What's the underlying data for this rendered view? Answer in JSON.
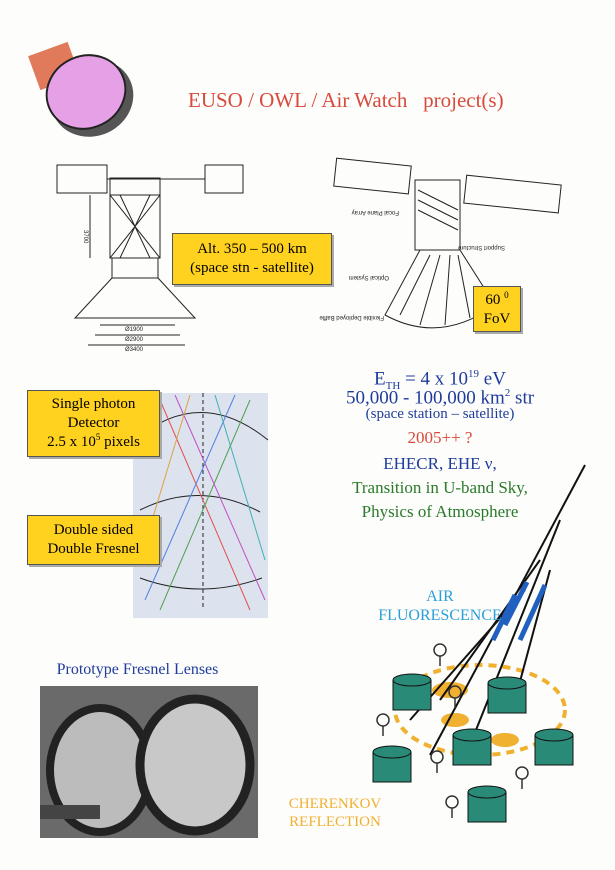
{
  "header": {
    "title": "EUSO / OWL / Air Watch   project(s)"
  },
  "altitude_box": {
    "lines": [
      "Alt. 350 – 500 km",
      "(space stn - satellite)"
    ]
  },
  "fov_box": {
    "value": "60",
    "sup": "0",
    "label": "FoV"
  },
  "specs": {
    "threshold": {
      "symbol": "E",
      "sub": "TH",
      "equals": "= 4 x 10",
      "exp": "19",
      "unit": "eV"
    },
    "aperture": {
      "text": "50,000 - 100,000 km",
      "exp": "2",
      "unit": "str"
    },
    "note": "(space station – satellite)",
    "date": "2005++ ?",
    "science": [
      "EHECR, EHE ν,",
      "Transition in U-band Sky,",
      "Physics of Atmosphere"
    ]
  },
  "detector_box": {
    "lines": [
      "Single photon",
      "Detector"
    ],
    "pixels": {
      "text": "2.5 x 10",
      "exp": "5",
      "unit": "pixels"
    }
  },
  "fresnel_box": {
    "lines": [
      "Double sided",
      "Double Fresnel"
    ]
  },
  "labels": {
    "air": [
      "AIR",
      "FLUORESCENCE"
    ],
    "photo": "Prototype Fresnel Lenses",
    "cherenkov": [
      "CHERENKOV",
      "REFLECTION"
    ]
  },
  "drawing_labels": [
    "3700",
    "Ø1900",
    "Ø2900",
    "Ø3400",
    "Focal Plane Array",
    "Support Structure",
    "Optical System",
    "Flexible Deployed Baffle"
  ]
}
